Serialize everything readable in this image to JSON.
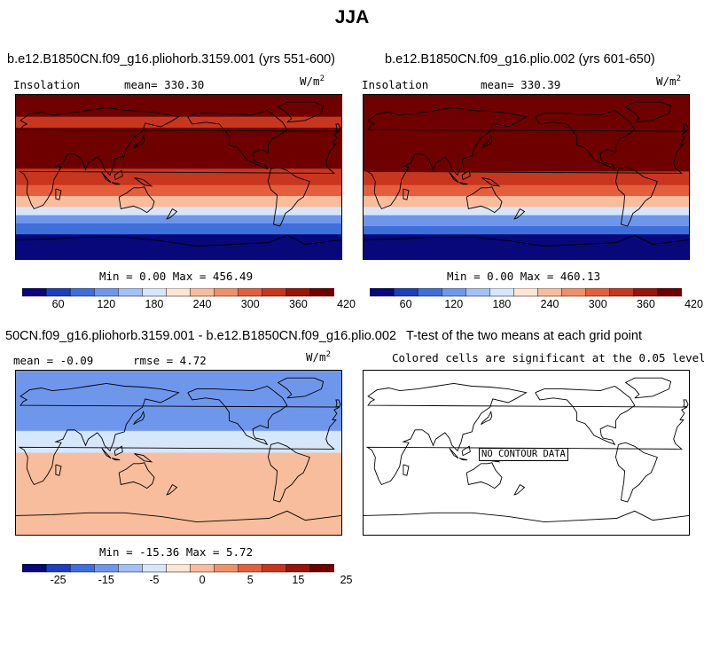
{
  "main_title": "JJA",
  "panels": [
    {
      "title": "b.e12.B1850CN.f09_g16.pliohorb.3159.001 (yrs 551-600)",
      "left_label": "Insolation",
      "mean_label": "mean=",
      "mean_value": "330.30",
      "units_base": "W/m",
      "units_exp": "2",
      "stats_text": "Min =    0.00 Max = 456.49",
      "colorbar_ticks": [
        "60",
        "120",
        "180",
        "240",
        "300",
        "360",
        "420"
      ]
    },
    {
      "title": "b.e12.B1850CN.f09_g16.plio.002 (yrs 601-650)",
      "left_label": "Insolation",
      "mean_label": "mean=",
      "mean_value": "330.39",
      "units_base": "W/m",
      "units_exp": "2",
      "stats_text": "Min =    0.00 Max = 460.13",
      "colorbar_ticks": [
        "60",
        "120",
        "180",
        "240",
        "300",
        "360",
        "420"
      ]
    },
    {
      "title": "50CN.f09_g16.pliohorb.3159.001 - b.e12.B1850CN.f09_g16.plio.002",
      "mean_text": "mean =  -0.09",
      "rmse_text": "rmse =   4.72",
      "units_base": "W/m",
      "units_exp": "2",
      "stats_text": "Min = -15.36 Max =   5.72",
      "colorbar_ticks": [
        "-25",
        "-15",
        "-5",
        "0",
        "5",
        "15",
        "25"
      ]
    },
    {
      "title": "T-test of the two means at each grid point",
      "subtitle": "Colored cells are significant at the 0.05 level",
      "no_data": "NO CONTOUR DATA"
    }
  ],
  "colors": {
    "palette": [
      "#08087a",
      "#1c3fbe",
      "#3e6fdb",
      "#6e97ec",
      "#a3c1f5",
      "#d6e6fb",
      "#fde5d4",
      "#f8bd9c",
      "#f0906a",
      "#e35f3d",
      "#c8361e",
      "#9a1409",
      "#6e0000"
    ]
  },
  "chart_data": [
    {
      "type": "heatmap",
      "title": "b.e12.B1850CN.f09_g16.pliohorb.3159.001 (yrs 551-600)",
      "variable": "Insolation",
      "units": "W/m2",
      "mean": 330.3,
      "min": 0.0,
      "max": 456.49,
      "colorbar_levels": [
        60,
        120,
        180,
        240,
        300,
        360,
        420
      ],
      "zonal_profile": {
        "description": "banded by latitude, north to south",
        "lat": [
          90,
          75,
          60,
          45,
          30,
          15,
          0,
          -15,
          -30,
          -45,
          -60,
          -75,
          -90
        ],
        "values": [
          445,
          430,
          415,
          430,
          445,
          435,
          395,
          330,
          255,
          165,
          70,
          5,
          0
        ]
      }
    },
    {
      "type": "heatmap",
      "title": "b.e12.B1850CN.f09_g16.plio.002 (yrs 601-650)",
      "variable": "Insolation",
      "units": "W/m2",
      "mean": 330.39,
      "min": 0.0,
      "max": 460.13,
      "colorbar_levels": [
        60,
        120,
        180,
        240,
        300,
        360,
        420
      ],
      "zonal_profile": {
        "lat": [
          90,
          75,
          60,
          45,
          30,
          15,
          0,
          -15,
          -30,
          -45,
          -60,
          -75,
          -90
        ],
        "values": [
          455,
          440,
          425,
          440,
          450,
          440,
          400,
          335,
          260,
          170,
          70,
          5,
          0
        ]
      }
    },
    {
      "type": "heatmap",
      "title": "50CN.f09_g16.pliohorb.3159.001 - b.e12.B1850CN.f09_g16.plio.002",
      "units": "W/m2",
      "mean": -0.09,
      "rmse": 4.72,
      "min": -15.36,
      "max": 5.72,
      "colorbar_levels": [
        -25,
        -15,
        -5,
        0,
        5,
        15,
        25
      ],
      "zonal_profile": {
        "lat": [
          90,
          75,
          60,
          45,
          30,
          15,
          0,
          -15,
          -30,
          -45,
          -60,
          -75,
          -90
        ],
        "values": [
          -14,
          -12,
          -10,
          -8,
          -6,
          -3,
          0,
          1,
          2,
          3,
          4,
          3,
          1
        ]
      }
    },
    {
      "type": "heatmap",
      "title": "T-test of the two means at each grid point",
      "note": "NO CONTOUR DATA"
    }
  ]
}
